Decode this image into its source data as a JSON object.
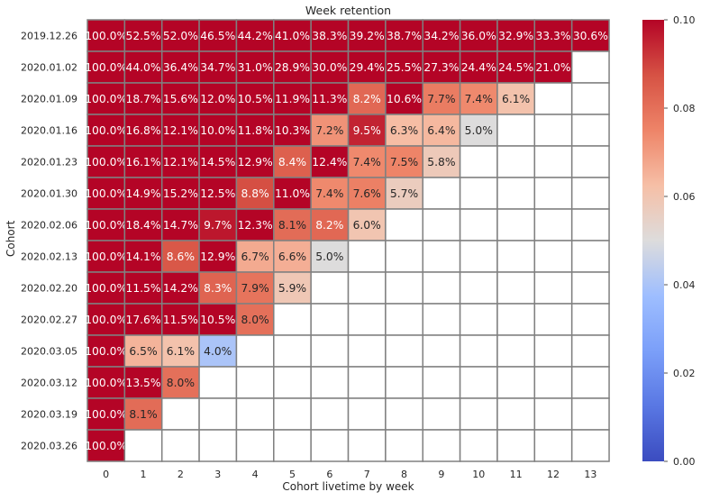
{
  "chart_data": {
    "type": "heatmap",
    "title": "Week retention",
    "xlabel": "Cohort livetime by week",
    "ylabel": "Cohort",
    "x": [
      "0",
      "1",
      "2",
      "3",
      "4",
      "5",
      "6",
      "7",
      "8",
      "9",
      "10",
      "11",
      "12",
      "13"
    ],
    "y": [
      "2019.12.26",
      "2020.01.02",
      "2020.01.09",
      "2020.01.16",
      "2020.01.23",
      "2020.01.30",
      "2020.02.06",
      "2020.02.13",
      "2020.02.20",
      "2020.02.27",
      "2020.03.05",
      "2020.03.12",
      "2020.03.19",
      "2020.03.26"
    ],
    "values": [
      [
        1.0,
        0.525,
        0.52,
        0.465,
        0.442,
        0.41,
        0.383,
        0.392,
        0.387,
        0.342,
        0.36,
        0.329,
        0.333,
        0.306
      ],
      [
        1.0,
        0.44,
        0.364,
        0.347,
        0.31,
        0.289,
        0.3,
        0.294,
        0.255,
        0.273,
        0.244,
        0.245,
        0.21,
        null
      ],
      [
        1.0,
        0.187,
        0.156,
        0.12,
        0.105,
        0.119,
        0.113,
        0.082,
        0.106,
        0.077,
        0.074,
        0.061,
        null,
        null
      ],
      [
        1.0,
        0.168,
        0.121,
        0.1,
        0.118,
        0.103,
        0.072,
        0.095,
        0.063,
        0.064,
        0.05,
        null,
        null,
        null
      ],
      [
        1.0,
        0.161,
        0.121,
        0.145,
        0.129,
        0.084,
        0.124,
        0.074,
        0.075,
        0.058,
        null,
        null,
        null,
        null
      ],
      [
        1.0,
        0.149,
        0.152,
        0.125,
        0.088,
        0.11,
        0.074,
        0.076,
        0.057,
        null,
        null,
        null,
        null,
        null
      ],
      [
        1.0,
        0.184,
        0.147,
        0.097,
        0.123,
        0.081,
        0.082,
        0.06,
        null,
        null,
        null,
        null,
        null,
        null
      ],
      [
        1.0,
        0.141,
        0.086,
        0.129,
        0.067,
        0.066,
        0.05,
        null,
        null,
        null,
        null,
        null,
        null,
        null
      ],
      [
        1.0,
        0.115,
        0.142,
        0.083,
        0.079,
        0.059,
        null,
        null,
        null,
        null,
        null,
        null,
        null,
        null
      ],
      [
        1.0,
        0.176,
        0.115,
        0.105,
        0.08,
        null,
        null,
        null,
        null,
        null,
        null,
        null,
        null,
        null
      ],
      [
        1.0,
        0.065,
        0.061,
        0.04,
        null,
        null,
        null,
        null,
        null,
        null,
        null,
        null,
        null,
        null
      ],
      [
        1.0,
        0.135,
        0.08,
        null,
        null,
        null,
        null,
        null,
        null,
        null,
        null,
        null,
        null,
        null
      ],
      [
        1.0,
        0.081,
        null,
        null,
        null,
        null,
        null,
        null,
        null,
        null,
        null,
        null,
        null,
        null
      ],
      [
        1.0,
        null,
        null,
        null,
        null,
        null,
        null,
        null,
        null,
        null,
        null,
        null,
        null,
        null
      ]
    ],
    "value_format": "percent_1dp",
    "colorbar": {
      "vmin": 0.0,
      "vmax": 0.1,
      "ticks": [
        "0.00",
        "0.02",
        "0.04",
        "0.06",
        "0.08",
        "0.10"
      ],
      "colormap": "coolwarm"
    },
    "grid": true
  }
}
